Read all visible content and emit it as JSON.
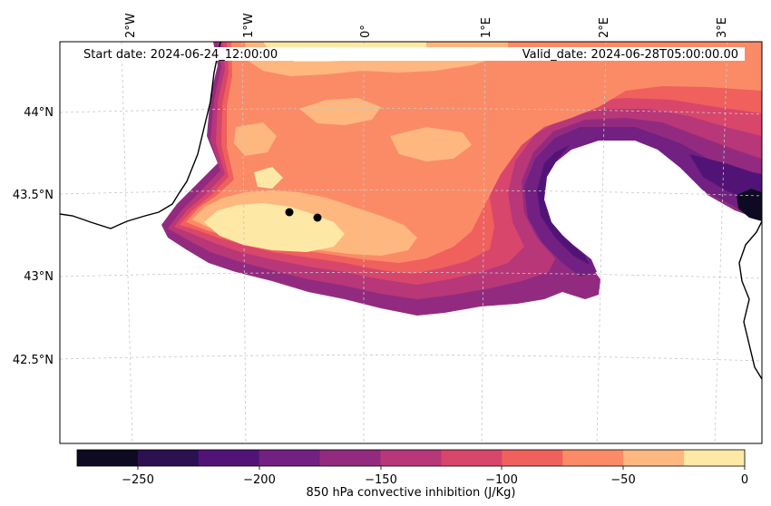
{
  "map": {
    "start_date_text": "Start date: 2024-06-24_12:00:00",
    "valid_date_text": "Valid_date: 2024-06-28T05:00:00.00",
    "lon_labels": [
      "2°W",
      "1°W",
      "0°",
      "1°E",
      "2°E",
      "3°E"
    ],
    "lat_labels": [
      "44°N",
      "43.5°N",
      "43°N",
      "42.5°N"
    ],
    "markers": [
      {
        "name": "marker-1",
        "lon": -0.6,
        "lat": 43.39
      },
      {
        "name": "marker-2",
        "lon": -0.37,
        "lat": 43.36
      }
    ]
  },
  "colorbar": {
    "label": "850 hPa convective inhibition (J/Kg)",
    "tick_labels": [
      "−250",
      "−200",
      "−150",
      "−100",
      "−50",
      "0"
    ],
    "min": -275,
    "max": 0,
    "colors": [
      "#000004",
      "#221150",
      "#5f187f",
      "#982d80",
      "#d3436e",
      "#f8765c",
      "#febb81",
      "#fcfdbf"
    ],
    "levels": [
      {
        "from": -275,
        "to": -250,
        "color": "#0d0a22"
      },
      {
        "from": -250,
        "to": -225,
        "color": "#2c1150"
      },
      {
        "from": -225,
        "to": -200,
        "color": "#521377"
      },
      {
        "from": -200,
        "to": -175,
        "color": "#722081"
      },
      {
        "from": -175,
        "to": -150,
        "color": "#922b7f"
      },
      {
        "from": -150,
        "to": -125,
        "color": "#b73779"
      },
      {
        "from": -125,
        "to": -100,
        "color": "#d8466c"
      },
      {
        "from": -100,
        "to": -75,
        "color": "#f0605d"
      },
      {
        "from": -75,
        "to": -50,
        "color": "#fb8b67"
      },
      {
        "from": -50,
        "to": -25,
        "color": "#feb77e"
      },
      {
        "from": -25,
        "to": 0,
        "color": "#fde8a6"
      }
    ]
  }
}
